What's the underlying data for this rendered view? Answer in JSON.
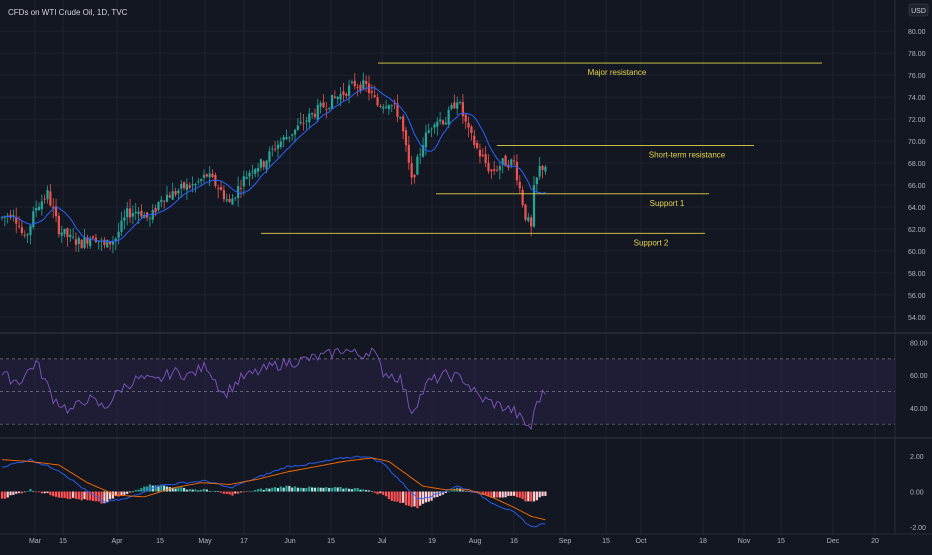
{
  "header": {
    "title": "CFDs on WTI Crude Oil, 1D, TVC"
  },
  "currency": "USD",
  "colors": {
    "background": "#131722",
    "grid": "#1f2330",
    "up": "#26a69a",
    "down": "#ef5350",
    "ma": "#2962ff",
    "annotation": "#e4d44b",
    "rsi_line": "#7e57c2",
    "rsi_band": "#2a2345",
    "macd_line": "#2962ff",
    "signal_line": "#ff6d00",
    "axis_text": "#b2b5be"
  },
  "chart_data": [
    {
      "type": "candlestick",
      "title": "CFDs on WTI Crude Oil, 1D, TVC",
      "ylim": [
        52.8,
        81.2
      ],
      "y_ticks": [
        "80.00",
        "78.00",
        "76.00",
        "74.00",
        "72.00",
        "70.00",
        "68.00",
        "66.00",
        "64.00",
        "62.00",
        "60.00",
        "58.00",
        "56.00",
        "54.00"
      ],
      "x_ticks": [
        "Mar",
        "15",
        "Apr",
        "15",
        "May",
        "17",
        "Jun",
        "15",
        "Jul",
        "19",
        "Aug",
        "16",
        "Sep",
        "15",
        "Oct",
        "18",
        "Nov",
        "15",
        "Dec",
        "20"
      ],
      "anchor_points": [
        [
          0,
          63.0
        ],
        [
          4,
          63.6
        ],
        [
          8,
          60.9
        ],
        [
          12,
          64.0
        ],
        [
          16,
          65.2
        ],
        [
          20,
          62.0
        ],
        [
          24,
          61.1
        ],
        [
          28,
          60.7
        ],
        [
          32,
          61.5
        ],
        [
          36,
          60.4
        ],
        [
          40,
          61.2
        ],
        [
          44,
          63.4
        ],
        [
          48,
          63.7
        ],
        [
          52,
          62.8
        ],
        [
          56,
          64.9
        ],
        [
          60,
          65.2
        ],
        [
          64,
          65.8
        ],
        [
          68,
          66.0
        ],
        [
          72,
          66.9
        ],
        [
          76,
          65.8
        ],
        [
          80,
          64.3
        ],
        [
          84,
          66.2
        ],
        [
          88,
          67.6
        ],
        [
          92,
          68.0
        ],
        [
          96,
          69.5
        ],
        [
          100,
          70.4
        ],
        [
          104,
          71.2
        ],
        [
          108,
          72.2
        ],
        [
          112,
          73.0
        ],
        [
          116,
          73.7
        ],
        [
          120,
          74.4
        ],
        [
          124,
          75.2
        ],
        [
          128,
          75.0
        ],
        [
          132,
          73.3
        ],
        [
          136,
          73.6
        ],
        [
          140,
          72.2
        ],
        [
          144,
          66.3
        ],
        [
          148,
          69.9
        ],
        [
          152,
          72.0
        ],
        [
          156,
          71.9
        ],
        [
          160,
          73.9
        ],
        [
          164,
          70.8
        ],
        [
          168,
          68.8
        ],
        [
          172,
          67.2
        ],
        [
          176,
          68.0
        ],
        [
          180,
          68.1
        ],
        [
          184,
          63.2
        ],
        [
          186,
          62.0
        ],
        [
          187,
          65.5
        ],
        [
          189,
          67.5
        ],
        [
          191,
          67.8
        ]
      ],
      "annotations": [
        {
          "label": "Major resistance",
          "y": 77.1
        },
        {
          "label": "Short-term resistance",
          "y": 69.6
        },
        {
          "label": "Support 1",
          "y": 65.2
        },
        {
          "label": "Support 2",
          "y": 61.6
        }
      ]
    },
    {
      "type": "line",
      "name_hidden": "RSI",
      "ylim": [
        24,
        84
      ],
      "y_ticks": [
        "80.00",
        "60.00",
        "40.00"
      ],
      "band": [
        30,
        70
      ],
      "mid": 50,
      "anchor_points": [
        [
          0,
          60
        ],
        [
          6,
          56
        ],
        [
          12,
          68
        ],
        [
          18,
          46
        ],
        [
          24,
          38
        ],
        [
          30,
          46
        ],
        [
          36,
          40
        ],
        [
          42,
          52
        ],
        [
          48,
          58
        ],
        [
          54,
          56
        ],
        [
          60,
          62
        ],
        [
          66,
          60
        ],
        [
          72,
          66
        ],
        [
          78,
          48
        ],
        [
          84,
          58
        ],
        [
          90,
          62
        ],
        [
          96,
          66
        ],
        [
          102,
          68
        ],
        [
          108,
          70
        ],
        [
          114,
          72
        ],
        [
          120,
          76
        ],
        [
          126,
          72
        ],
        [
          130,
          76
        ],
        [
          134,
          62
        ],
        [
          140,
          58
        ],
        [
          144,
          38
        ],
        [
          150,
          56
        ],
        [
          156,
          60
        ],
        [
          162,
          58
        ],
        [
          168,
          46
        ],
        [
          174,
          42
        ],
        [
          180,
          38
        ],
        [
          184,
          30
        ],
        [
          186,
          28
        ],
        [
          188,
          44
        ],
        [
          191,
          50
        ]
      ]
    },
    {
      "type": "histogram",
      "name_hidden": "MACD",
      "ylim": [
        -2.4,
        2.8
      ],
      "y_ticks": [
        "2.00",
        "0.00",
        "-2.00"
      ],
      "macd_anchor_points": [
        [
          0,
          1.4
        ],
        [
          10,
          1.8
        ],
        [
          20,
          1.2
        ],
        [
          30,
          0.0
        ],
        [
          36,
          -0.6
        ],
        [
          44,
          -0.4
        ],
        [
          54,
          0.3
        ],
        [
          64,
          0.5
        ],
        [
          72,
          0.6
        ],
        [
          80,
          0.2
        ],
        [
          90,
          0.8
        ],
        [
          100,
          1.4
        ],
        [
          110,
          1.6
        ],
        [
          120,
          1.9
        ],
        [
          128,
          2.0
        ],
        [
          134,
          1.6
        ],
        [
          140,
          0.6
        ],
        [
          146,
          -0.4
        ],
        [
          152,
          -0.2
        ],
        [
          160,
          0.3
        ],
        [
          166,
          0.0
        ],
        [
          172,
          -0.6
        ],
        [
          180,
          -1.2
        ],
        [
          186,
          -2.0
        ],
        [
          191,
          -1.8
        ]
      ],
      "signal_anchor_points": [
        [
          0,
          1.8
        ],
        [
          10,
          1.7
        ],
        [
          20,
          1.5
        ],
        [
          30,
          0.5
        ],
        [
          40,
          -0.2
        ],
        [
          50,
          -0.3
        ],
        [
          60,
          0.2
        ],
        [
          70,
          0.5
        ],
        [
          80,
          0.4
        ],
        [
          90,
          0.7
        ],
        [
          100,
          1.1
        ],
        [
          110,
          1.4
        ],
        [
          120,
          1.7
        ],
        [
          130,
          1.9
        ],
        [
          136,
          1.7
        ],
        [
          142,
          1.0
        ],
        [
          148,
          0.3
        ],
        [
          156,
          0.1
        ],
        [
          164,
          0.1
        ],
        [
          172,
          -0.3
        ],
        [
          180,
          -0.9
        ],
        [
          186,
          -1.4
        ],
        [
          191,
          -1.6
        ]
      ]
    }
  ]
}
